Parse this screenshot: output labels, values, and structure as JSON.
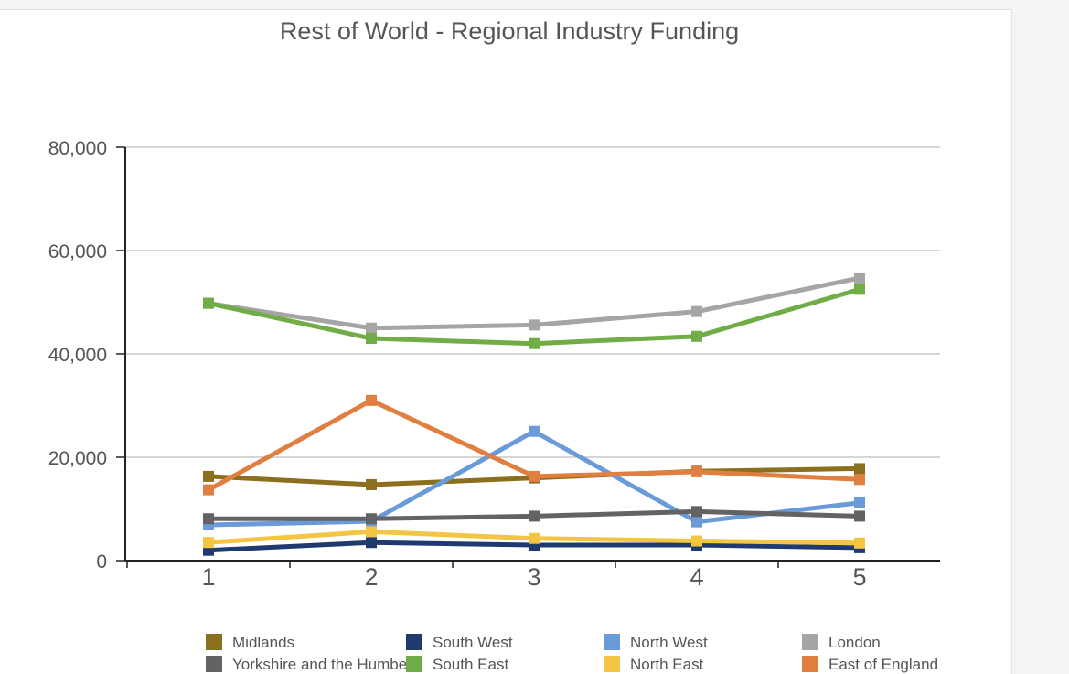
{
  "chart_data": {
    "type": "line",
    "title": "Rest of World - Regional Industry Funding",
    "xlabel": "",
    "ylabel": "",
    "x": [
      1,
      2,
      3,
      4,
      5
    ],
    "ylim": [
      0,
      80000
    ],
    "yticks": [
      0,
      20000,
      40000,
      60000,
      80000
    ],
    "ytick_labels": [
      "0",
      "20,000",
      "40,000",
      "60,000",
      "80,000"
    ],
    "xtick_labels": [
      "1",
      "2",
      "3",
      "4",
      "5"
    ],
    "grid": true,
    "legend_position": "bottom",
    "series": [
      {
        "name": "Midlands",
        "color": "#8B6F1E",
        "values": [
          16300,
          14700,
          16000,
          17300,
          17800
        ]
      },
      {
        "name": "South West",
        "color": "#1F3A6E",
        "values": [
          2000,
          3500,
          3000,
          3000,
          2500
        ]
      },
      {
        "name": "North West",
        "color": "#6A9BD8",
        "values": [
          6900,
          7600,
          25000,
          7500,
          11200
        ]
      },
      {
        "name": "London",
        "color": "#A5A5A5",
        "values": [
          49800,
          45000,
          45600,
          48200,
          54700
        ]
      },
      {
        "name": "Yorkshire and the Humber",
        "color": "#636363",
        "values": [
          8100,
          8100,
          8600,
          9500,
          8600
        ]
      },
      {
        "name": "South East",
        "color": "#70AD47",
        "values": [
          49800,
          43000,
          42000,
          43400,
          52500
        ]
      },
      {
        "name": "North East",
        "color": "#F4C542",
        "values": [
          3500,
          5600,
          4300,
          3800,
          3400
        ]
      },
      {
        "name": "East of England",
        "color": "#E07F3F",
        "values": [
          13700,
          31000,
          16300,
          17200,
          15700
        ]
      }
    ]
  }
}
